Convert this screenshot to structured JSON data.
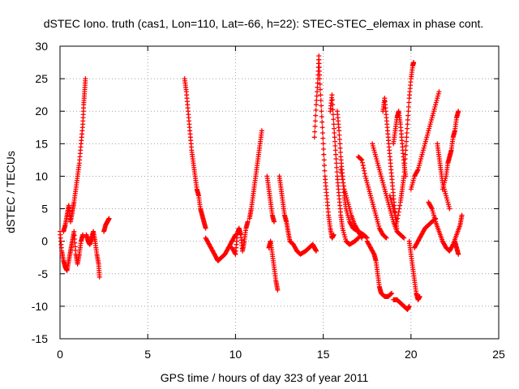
{
  "chart_data": {
    "type": "scatter",
    "title": "dSTEC Iono. truth (cas1, Lon=110, Lat=-66, h=22): STEC-STEC_elemax in phase cont.",
    "xlabel": "GPS time / hours of day 323 of year 2011",
    "ylabel": "dSTEC  / TECUs",
    "xlim": [
      0,
      25
    ],
    "ylim": [
      -15,
      30
    ],
    "xticks": [
      0,
      5,
      10,
      15,
      20,
      25
    ],
    "yticks": [
      -15,
      -10,
      -5,
      0,
      5,
      10,
      15,
      20,
      25,
      30
    ],
    "xtick_labels": [
      "0",
      "5",
      "10",
      "15",
      "20",
      "25"
    ],
    "ytick_labels": [
      "-15",
      "-10",
      "-5",
      "0",
      "5",
      "10",
      "15",
      "20",
      "25",
      "30"
    ],
    "grid": true,
    "legend": "none",
    "marker": "+",
    "color": "#ff0000",
    "series": [
      {
        "arcs": [
          [
            [
              0.0,
              1.5
            ],
            [
              0.1,
              -1.5
            ],
            [
              0.2,
              -3
            ],
            [
              0.3,
              -4
            ],
            [
              0.4,
              -4.5
            ],
            [
              0.5,
              -3
            ],
            [
              0.6,
              -1.5
            ],
            [
              0.7,
              0
            ],
            [
              0.8,
              1.5
            ],
            [
              0.9,
              -2
            ],
            [
              1.0,
              -3.5
            ],
            [
              1.1,
              -2
            ],
            [
              1.2,
              0
            ],
            [
              1.3,
              1
            ]
          ],
          [
            [
              0.2,
              1.5
            ],
            [
              0.3,
              2.5
            ],
            [
              0.4,
              4
            ],
            [
              0.5,
              5.5
            ],
            [
              0.6,
              3
            ],
            [
              0.7,
              4.5
            ],
            [
              0.8,
              6
            ],
            [
              0.9,
              8
            ],
            [
              1.0,
              10
            ],
            [
              1.1,
              12
            ],
            [
              1.2,
              15
            ],
            [
              1.3,
              18
            ],
            [
              1.35,
              21
            ],
            [
              1.4,
              23
            ],
            [
              1.45,
              25
            ]
          ],
          [
            [
              1.5,
              1
            ],
            [
              1.6,
              0
            ],
            [
              1.7,
              -0.5
            ],
            [
              1.8,
              0.5
            ],
            [
              1.9,
              1.5
            ],
            [
              2.0,
              0
            ],
            [
              2.1,
              -2
            ],
            [
              2.2,
              -3.5
            ],
            [
              2.25,
              -5.5
            ]
          ],
          [
            [
              2.5,
              1.5
            ],
            [
              2.6,
              2.5
            ],
            [
              2.7,
              3
            ],
            [
              2.8,
              3.5
            ]
          ],
          [
            [
              7.1,
              25
            ],
            [
              7.2,
              23
            ],
            [
              7.3,
              20
            ],
            [
              7.4,
              17
            ],
            [
              7.5,
              14
            ],
            [
              7.6,
              12
            ],
            [
              7.7,
              10
            ],
            [
              7.8,
              8
            ],
            [
              7.9,
              7
            ],
            [
              8.0,
              5
            ],
            [
              8.1,
              4
            ],
            [
              8.2,
              3
            ],
            [
              8.3,
              2
            ]
          ],
          [
            [
              8.3,
              0.5
            ],
            [
              8.5,
              -0.5
            ],
            [
              8.7,
              -1.5
            ],
            [
              8.9,
              -2.5
            ],
            [
              9.0,
              -3
            ],
            [
              9.2,
              -2.5
            ],
            [
              9.4,
              -2
            ],
            [
              9.6,
              -1
            ],
            [
              9.8,
              0
            ],
            [
              10.0,
              1
            ]
          ],
          [
            [
              9.8,
              -1
            ],
            [
              10.0,
              -2
            ],
            [
              10.1,
              1
            ],
            [
              10.2,
              2
            ],
            [
              10.3,
              1
            ],
            [
              10.4,
              -1.5
            ],
            [
              10.5,
              0
            ],
            [
              10.6,
              2
            ],
            [
              10.7,
              3
            ]
          ],
          [
            [
              10.8,
              3.5
            ],
            [
              10.9,
              5
            ],
            [
              11.0,
              7
            ],
            [
              11.1,
              9
            ],
            [
              11.2,
              11
            ],
            [
              11.3,
              13
            ],
            [
              11.4,
              15
            ],
            [
              11.5,
              17
            ]
          ],
          [
            [
              11.9,
              -1
            ],
            [
              12.0,
              0
            ],
            [
              12.1,
              -2
            ],
            [
              12.2,
              -4
            ],
            [
              12.3,
              -6
            ],
            [
              12.4,
              -7.5
            ]
          ],
          [
            [
              11.8,
              10
            ],
            [
              11.9,
              8
            ],
            [
              12.0,
              6
            ],
            [
              12.1,
              4
            ],
            [
              12.2,
              3
            ]
          ],
          [
            [
              12.5,
              10
            ],
            [
              12.6,
              8
            ],
            [
              12.7,
              6
            ],
            [
              12.8,
              4
            ],
            [
              12.9,
              3
            ],
            [
              13.0,
              1.5
            ],
            [
              13.1,
              0
            ],
            [
              13.3,
              -0.5
            ],
            [
              13.5,
              -1.5
            ],
            [
              13.7,
              -2
            ],
            [
              14.0,
              -1.5
            ],
            [
              14.2,
              -1
            ],
            [
              14.4,
              -0.5
            ],
            [
              14.5,
              -1
            ],
            [
              14.6,
              -1.5
            ]
          ],
          [
            [
              14.5,
              16
            ],
            [
              14.6,
              21
            ],
            [
              14.7,
              25
            ],
            [
              14.75,
              28.5
            ],
            [
              14.8,
              25
            ],
            [
              14.9,
              20
            ],
            [
              15.0,
              15
            ],
            [
              15.1,
              10
            ],
            [
              15.2,
              7
            ],
            [
              15.3,
              4
            ],
            [
              15.4,
              2
            ],
            [
              15.5,
              0.5
            ],
            [
              15.6,
              1
            ]
          ],
          [
            [
              15.4,
              20
            ],
            [
              15.5,
              22.5
            ],
            [
              15.6,
              18
            ],
            [
              15.7,
              14
            ],
            [
              15.8,
              10
            ],
            [
              15.9,
              7
            ],
            [
              16.0,
              4
            ],
            [
              16.1,
              2
            ],
            [
              16.3,
              0
            ],
            [
              16.5,
              -0.5
            ],
            [
              16.8,
              0
            ],
            [
              17.0,
              0.5
            ]
          ],
          [
            [
              15.8,
              20
            ],
            [
              15.9,
              17
            ],
            [
              16.0,
              13
            ],
            [
              16.1,
              10
            ],
            [
              16.2,
              7
            ],
            [
              16.3,
              5
            ],
            [
              16.5,
              3
            ],
            [
              16.7,
              2
            ],
            [
              17.0,
              1.5
            ],
            [
              17.3,
              1
            ],
            [
              17.5,
              0.5
            ]
          ],
          [
            [
              16.0,
              11
            ],
            [
              16.2,
              8
            ],
            [
              16.4,
              6
            ],
            [
              16.6,
              4
            ],
            [
              16.8,
              2.5
            ],
            [
              17.0,
              1.5
            ],
            [
              17.2,
              0.5
            ]
          ],
          [
            [
              17.0,
              13
            ],
            [
              17.2,
              12.5
            ],
            [
              17.4,
              10
            ],
            [
              17.6,
              8
            ],
            [
              17.8,
              6
            ],
            [
              18.0,
              4
            ],
            [
              18.2,
              2
            ],
            [
              18.4,
              1
            ],
            [
              18.6,
              0.5
            ]
          ],
          [
            [
              17.5,
              0
            ],
            [
              17.7,
              -1
            ],
            [
              17.9,
              -2
            ],
            [
              18.0,
              -3
            ],
            [
              18.1,
              -5
            ],
            [
              18.2,
              -7
            ],
            [
              18.3,
              -8
            ],
            [
              18.5,
              -8.5
            ],
            [
              18.7,
              -8.5
            ],
            [
              18.9,
              -8
            ]
          ],
          [
            [
              17.8,
              15
            ],
            [
              18.0,
              13
            ],
            [
              18.2,
              11
            ],
            [
              18.4,
              9
            ],
            [
              18.6,
              7
            ],
            [
              18.8,
              5
            ],
            [
              19.0,
              3
            ],
            [
              19.2,
              1.5
            ],
            [
              19.4,
              1
            ],
            [
              19.6,
              0.5
            ]
          ],
          [
            [
              18.4,
              20
            ],
            [
              18.5,
              22
            ],
            [
              18.6,
              19
            ],
            [
              18.7,
              16
            ],
            [
              18.8,
              13
            ],
            [
              18.9,
              10
            ],
            [
              19.0,
              7
            ],
            [
              19.1,
              4
            ],
            [
              19.2,
              2
            ]
          ],
          [
            [
              18.8,
              7
            ],
            [
              19.0,
              5
            ],
            [
              19.2,
              3
            ],
            [
              19.4,
              6
            ],
            [
              19.5,
              8
            ],
            [
              19.6,
              10
            ],
            [
              19.7,
              14
            ],
            [
              19.8,
              18
            ],
            [
              19.9,
              22
            ],
            [
              20.0,
              25
            ],
            [
              20.1,
              27
            ],
            [
              20.15,
              27.5
            ]
          ],
          [
            [
              19.0,
              15
            ],
            [
              19.1,
              17
            ],
            [
              19.2,
              19
            ],
            [
              19.3,
              20
            ],
            [
              19.4,
              18
            ],
            [
              19.5,
              15
            ],
            [
              19.6,
              12
            ],
            [
              19.7,
              10
            ]
          ],
          [
            [
              19.0,
              -9
            ],
            [
              19.2,
              -9
            ],
            [
              19.4,
              -9.5
            ],
            [
              19.6,
              -10
            ],
            [
              19.8,
              -10.5
            ],
            [
              19.9,
              -10
            ]
          ],
          [
            [
              19.9,
              0
            ],
            [
              20.0,
              -2
            ],
            [
              20.1,
              -4
            ],
            [
              20.2,
              -6
            ],
            [
              20.3,
              -8
            ],
            [
              20.4,
              -9
            ],
            [
              20.5,
              -8.5
            ]
          ],
          [
            [
              20.0,
              8
            ],
            [
              20.2,
              10
            ],
            [
              20.4,
              11
            ],
            [
              20.6,
              13
            ],
            [
              20.8,
              15
            ],
            [
              21.0,
              17
            ],
            [
              21.2,
              19
            ],
            [
              21.4,
              21
            ],
            [
              21.6,
              23
            ]
          ],
          [
            [
              20.2,
              -1
            ],
            [
              20.4,
              0
            ],
            [
              20.6,
              1
            ],
            [
              20.8,
              2
            ],
            [
              21.0,
              2.5
            ],
            [
              21.2,
              3
            ],
            [
              21.4,
              3.5
            ]
          ],
          [
            [
              21.5,
              15
            ],
            [
              21.6,
              13
            ],
            [
              21.7,
              11
            ],
            [
              21.8,
              9
            ],
            [
              22.0,
              7
            ],
            [
              22.2,
              5
            ]
          ],
          [
            [
              21.0,
              6
            ],
            [
              21.2,
              5
            ],
            [
              21.4,
              3
            ],
            [
              21.6,
              1.5
            ],
            [
              21.8,
              0
            ],
            [
              22.0,
              -1
            ],
            [
              22.2,
              -1.5
            ],
            [
              22.4,
              -0.5
            ],
            [
              22.6,
              1
            ],
            [
              22.8,
              2.5
            ],
            [
              22.9,
              4
            ]
          ],
          [
            [
              21.8,
              8
            ],
            [
              22.0,
              10
            ],
            [
              22.1,
              12
            ],
            [
              22.2,
              13
            ],
            [
              22.3,
              14
            ],
            [
              22.4,
              16
            ],
            [
              22.5,
              17
            ],
            [
              22.6,
              19
            ],
            [
              22.7,
              20
            ]
          ],
          [
            [
              22.5,
              0
            ],
            [
              22.6,
              -1
            ],
            [
              22.7,
              -2
            ]
          ]
        ]
      }
    ]
  }
}
